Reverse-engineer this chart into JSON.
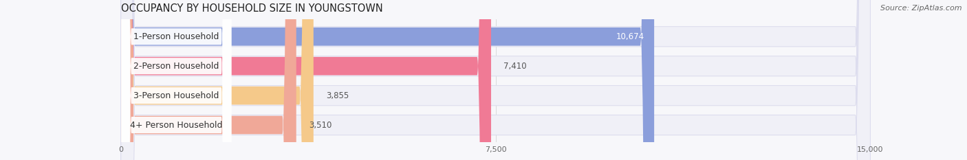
{
  "title": "OCCUPANCY BY HOUSEHOLD SIZE IN YOUNGSTOWN",
  "source": "Source: ZipAtlas.com",
  "categories": [
    "1-Person Household",
    "2-Person Household",
    "3-Person Household",
    "4+ Person Household"
  ],
  "values": [
    10674,
    7410,
    3855,
    3510
  ],
  "bar_colors": [
    "#8b9edb",
    "#f07a95",
    "#f5c98a",
    "#f0a898"
  ],
  "bar_bg_color": "#e4e4ee",
  "xlim": [
    0,
    15000
  ],
  "xticks": [
    0,
    7500,
    15000
  ],
  "title_fontsize": 10.5,
  "source_fontsize": 8,
  "bar_label_fontsize": 9,
  "value_fontsize": 8.5,
  "background_color": "#f7f7fa",
  "bar_area_bg": "#ffffff",
  "value_inside_color": "#ffffff",
  "value_outside_color": "#555555",
  "label_text_color": "#333333"
}
